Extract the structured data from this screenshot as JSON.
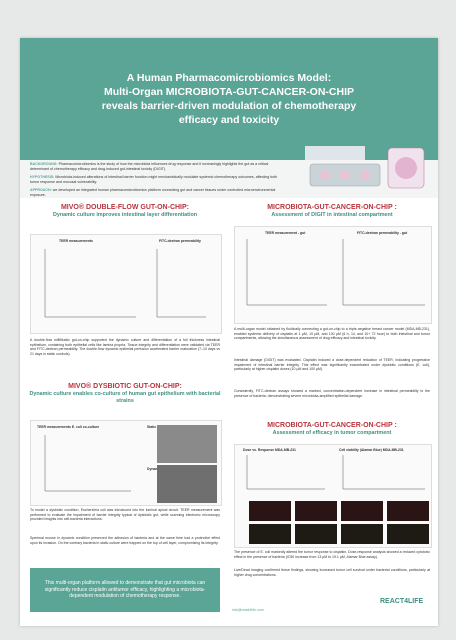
{
  "header": {
    "title": [
      "A Human Pharmacomicrobiomics Model:",
      "Multi-Organ MICROBIOTA-GUT-CANCER-ON-CHIP",
      "reveals barrier-driven modulation of chemotherapy",
      "efficacy and toxicity"
    ]
  },
  "intro": [
    {
      "label": "BACKGROUND:",
      "text": "Pharmacomicrobiomics is the study of how the microbiota influences drug response and it increasingly highlights the gut as a critical determinant of chemotherapy efficacy and drug-induced gut-intestinal toxicity (DIGIT)."
    },
    {
      "label": "HYPOTHESIS:",
      "text": "Microbiota-induced alterations of intestinal barrier function might mechanistically modulate systemic chemotherapy outcomes, affecting both tumor response and mucosal vulnerability."
    },
    {
      "label": "APPROACH:",
      "text": "we developed an integrated human pharmacomicrobiomics platform connecting gut and cancer tissues under controlled microenvironmental exposure."
    }
  ],
  "left": {
    "section1": {
      "heading": "MIVO® DOUBLE-FLOW GUT-ON-CHIP:",
      "subtitle": "Dynamic culture improves intestinal layer differentiation",
      "figure_titles": [
        "TEER measurements",
        "FITC-dextran permeability"
      ],
      "text": "A double-flow milliflluidic gut-on-chip supported the dynamic culture and differentiation of a full thickness intestinal epithelium, containing both epithelial cells like lamina propria. Tissue integrity and differentiation were validated via TEER and FITC-dextran permeability. The double-flow dynamic epithelial perfusion accelerated barrier maturation (7–10 days vs 21 days in static controls)."
    },
    "section2": {
      "heading": "MIVO® DYSBIOTIC GUT-ON-CHIP:",
      "subtitle": "Dynamic culture enables co-culture of human gut epithelium with bacterial strains",
      "figure_titles": [
        "TEER measurements E. coli co-culture",
        "Static",
        "Dynamic"
      ],
      "text": [
        "To model a dysbiotic condition, Escherichia coli was introduced into the luminal apical circuit. TEER measurement was performed to evaluate the impairment of barrier integrity typical of dysbiotic gut, while scanning electronic microscopy provided insights into cell-bacteria interactions.",
        "Sperimal mouse in dynamic condition preserved the adhesion of bacteria and at the same time had a protective effect upon its invasion. On the contrary bacteria in static culture were trapped on the top of cell layer, compromising its integrity."
      ]
    },
    "conclusion": "This multi-organ platform allowed to demonstrate that gut microbiota can significantly reduce cisplatin antitumor efficacy, highlighting a microbiota-dependent modulation of chemotherapy response."
  },
  "right": {
    "section1": {
      "heading": "MICROBIOTA-GUT-CANCER-ON-CHIP :",
      "subtitle": "Assessment of DIGIT in intestinal compartment",
      "figure_titles": [
        "TEER measurement - gut",
        "FITC-dextran permeability - gut"
      ],
      "text": [
        "A multi-organ model obtained by fluidically connecting a gut-on-chip to a triple-negative breast cancer model (MDA-MB-231), enabled systemic delivery of cisplatin at 1 µM, 10 µM, and 100 µM (6 h, 14, and 10+ 72 hour) to both intestinal and tumor compartments, allowing the simultaneous assessment of drug efficacy and intestinal toxicity.",
        "Intestinal damage (DIGIT) was evaluated. Cisplatin induced a dose-dependent reduction of TEER, indicating progressive impairment of intestinal barrier integrity. This effect was significantly exacerbated under dysbiotic conditions (E. coli), particularly at higher cisplatin doses (10 µM and 100 µM).",
        "Consistently, FITC-dextran assays showed a marked, concentration-dependent increase in intestinal permeability in the presence of bacteria, demonstrating severe microbiota-amplified epithelial damage."
      ]
    },
    "section2": {
      "heading": "MICROBIOTA-GUT-CANCER-ON-CHIP :",
      "subtitle": "Assessment of efficacy in tumor compartment",
      "figure_titles": [
        "Dose vs. Response MDA-MB-231",
        "Cell viability (Alamar Blue) MDA-MB-231"
      ],
      "text": [
        "The presence of E. coli markedly altered the tumor response to cisplatin. Dose-response analysis showed a reduced cytotoxic effect in the presence of bacteria (IC50 increase from 13 µM to 19.1 µM, Alamar Blue assay).",
        "Live/Dead imaging confirmed these findings, showing increased tumor cell survival under bacterial conditions, particularly at higher drug concentrations."
      ]
    }
  },
  "footer": {
    "email": "info@react4life.com",
    "logo": "REACT4LIFE"
  }
}
